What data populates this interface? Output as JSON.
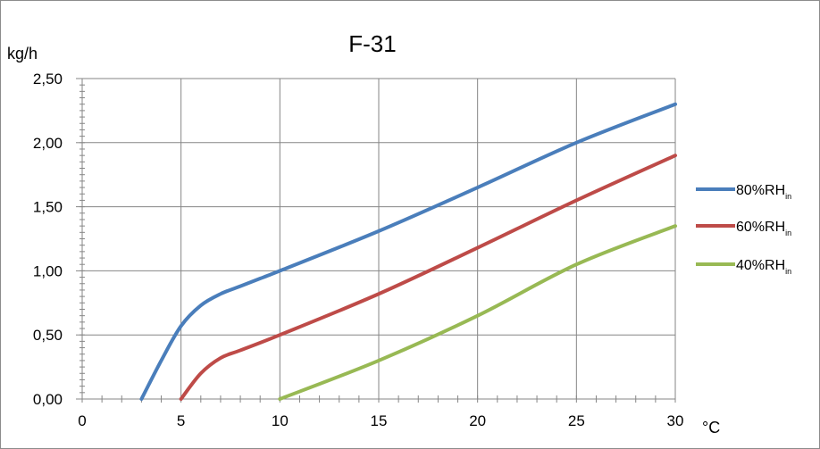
{
  "chart_data": {
    "type": "line",
    "title": "F-31",
    "ylabel": "kg/h",
    "xlabel": "°C",
    "xlim": [
      0,
      30
    ],
    "ylim": [
      0,
      2.5
    ],
    "x_ticks": [
      "0",
      "5",
      "10",
      "15",
      "20",
      "25",
      "30"
    ],
    "y_ticks": [
      "0,00",
      "0,50",
      "1,00",
      "1,50",
      "2,00",
      "2,50"
    ],
    "grid": true,
    "legend_position": "right",
    "series": [
      {
        "name": "80%RH",
        "name_sub": "in",
        "color": "#4a7ebb",
        "points": [
          [
            3,
            0.0
          ],
          [
            4,
            0.3
          ],
          [
            5,
            0.57
          ],
          [
            6,
            0.73
          ],
          [
            7,
            0.82
          ],
          [
            8,
            0.88
          ],
          [
            9,
            0.94
          ],
          [
            10,
            1.0
          ],
          [
            15,
            1.31
          ],
          [
            20,
            1.65
          ],
          [
            25,
            2.0
          ],
          [
            30,
            2.3
          ]
        ]
      },
      {
        "name": "60%RH",
        "name_sub": "in",
        "color": "#be4b48",
        "points": [
          [
            5,
            0.0
          ],
          [
            6,
            0.2
          ],
          [
            7,
            0.32
          ],
          [
            8,
            0.38
          ],
          [
            10,
            0.5
          ],
          [
            15,
            0.82
          ],
          [
            20,
            1.18
          ],
          [
            25,
            1.55
          ],
          [
            30,
            1.9
          ]
        ]
      },
      {
        "name": "40%RH",
        "name_sub": "in",
        "color": "#98b954",
        "points": [
          [
            10,
            0.0
          ],
          [
            15,
            0.3
          ],
          [
            20,
            0.65
          ],
          [
            25,
            1.05
          ],
          [
            30,
            1.35
          ]
        ]
      }
    ]
  }
}
